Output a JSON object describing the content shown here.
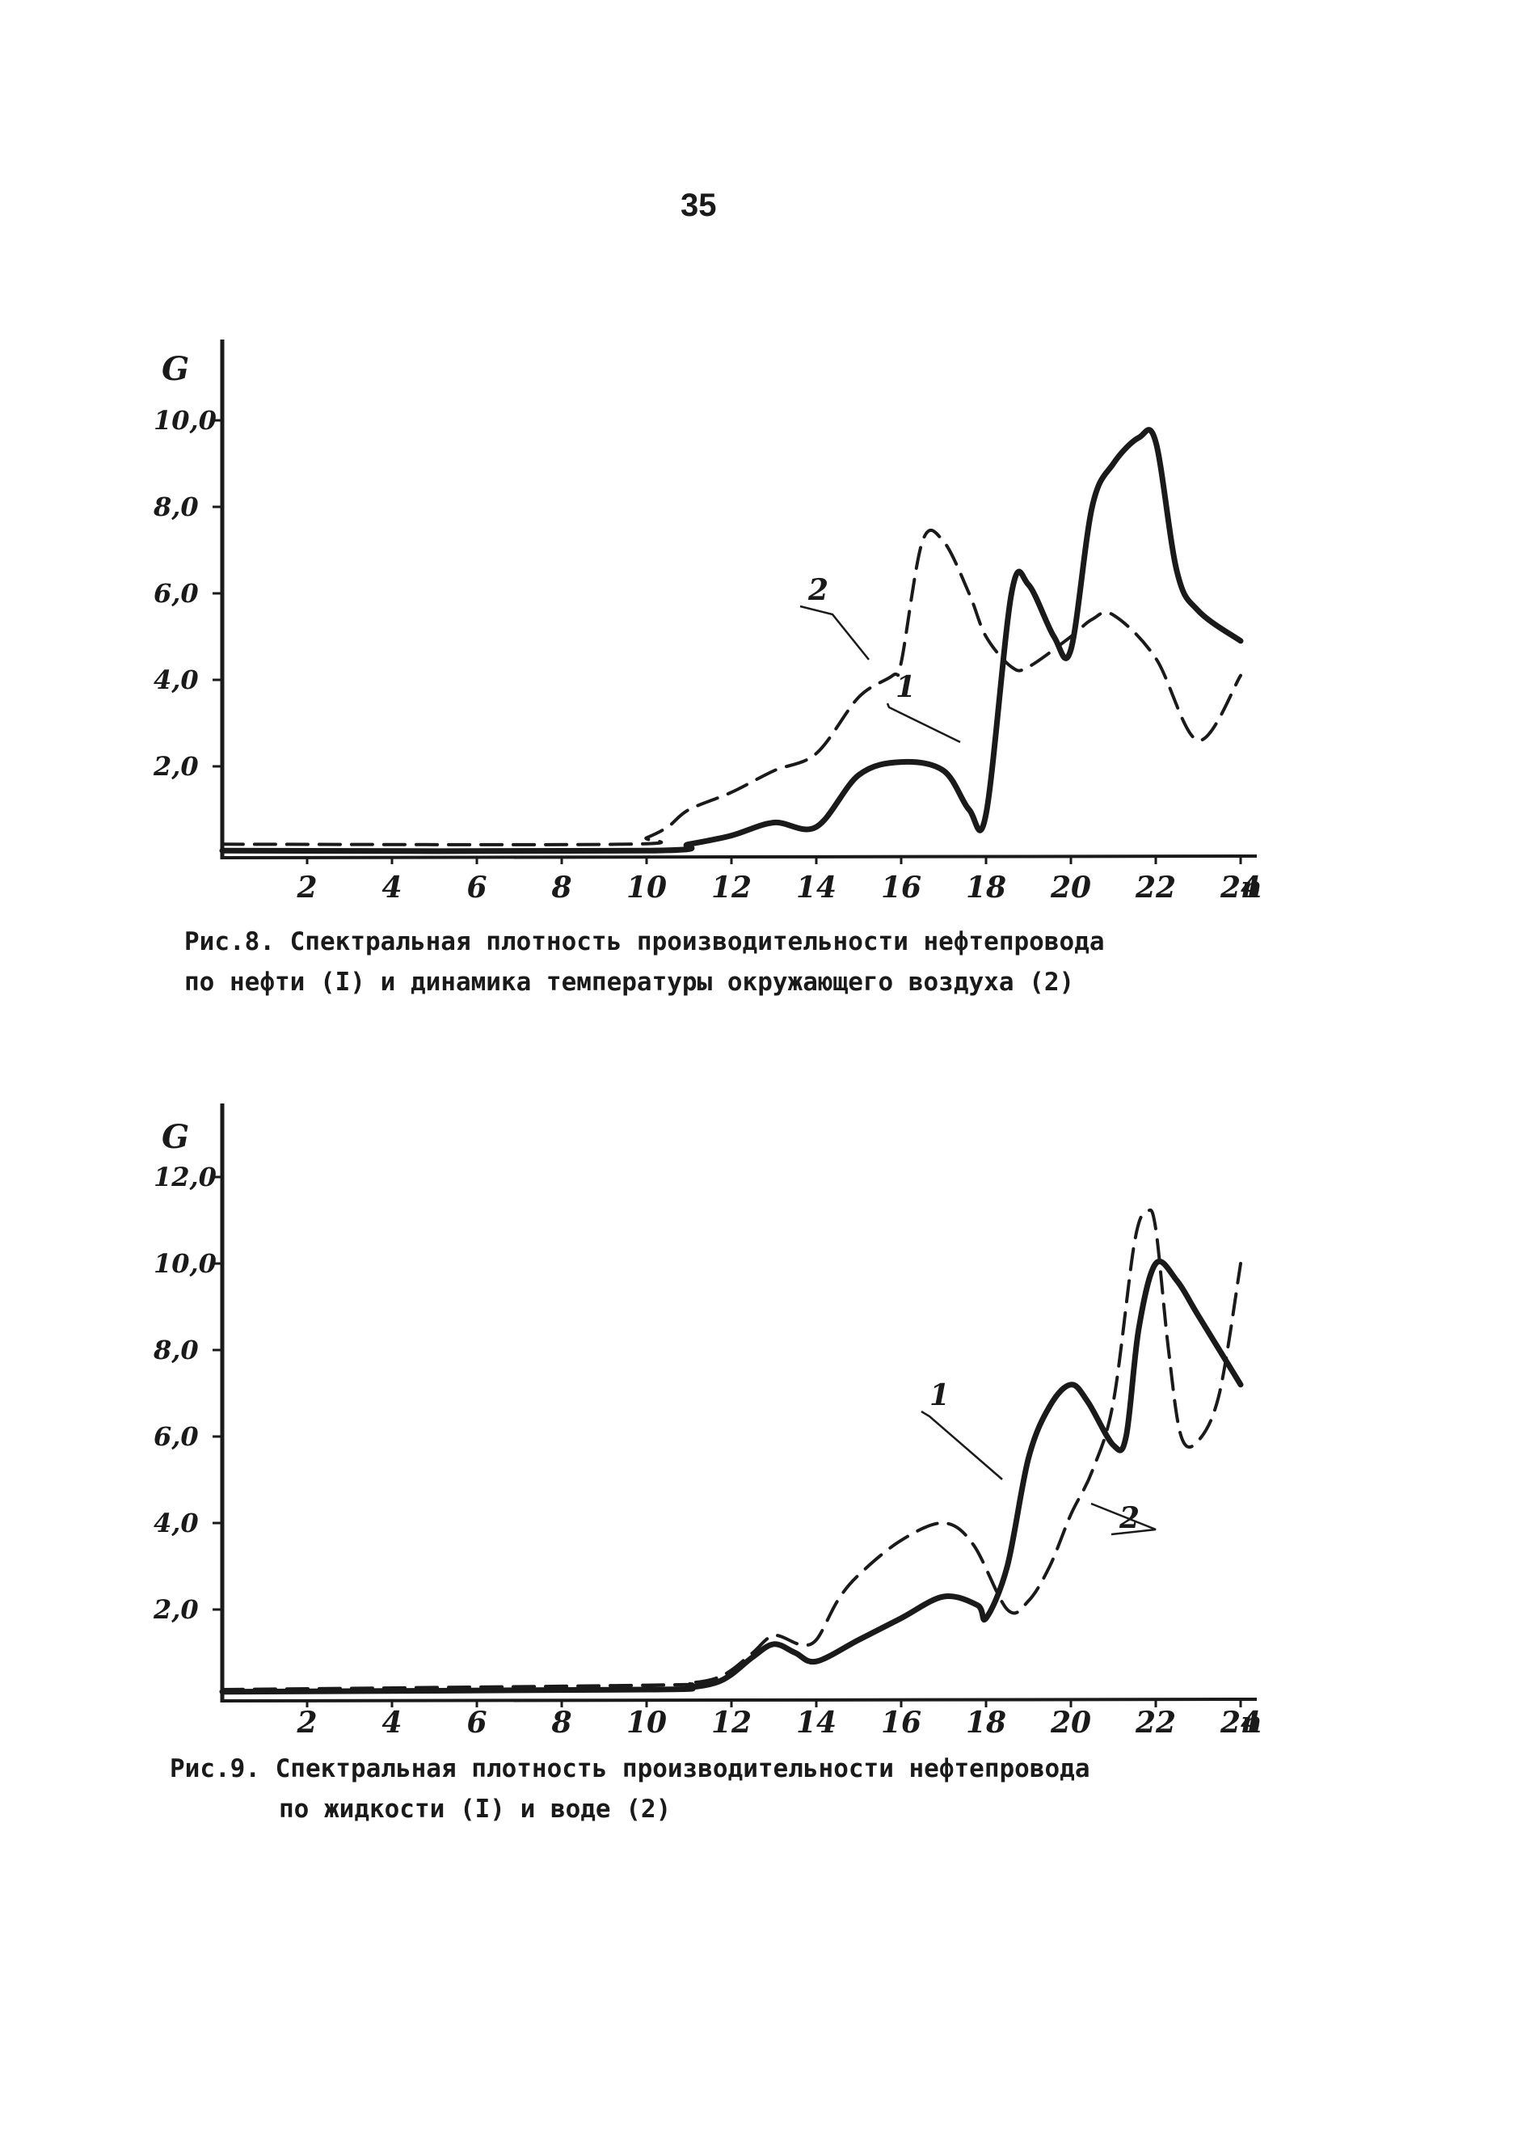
{
  "page_number": "35",
  "colors": {
    "ink": "#1a1a1a",
    "paper": "#ffffff"
  },
  "chart_data": [
    {
      "type": "line",
      "ylabel": "G",
      "xlabel": "n",
      "x_ticks": [
        "2",
        "4",
        "6",
        "8",
        "10",
        "12",
        "14",
        "16",
        "18",
        "20",
        "22",
        "24"
      ],
      "y_ticks": [
        "2,0",
        "4,0",
        "6,0",
        "8,0",
        "10,0"
      ],
      "xlim": [
        0,
        24.5
      ],
      "ylim": [
        0,
        10.5
      ],
      "grid": false,
      "series": [
        {
          "name": "1",
          "style": "solid",
          "x": [
            0,
            10,
            11,
            12,
            13,
            14,
            15,
            16,
            17,
            17.6,
            18,
            18.6,
            19,
            19.6,
            20,
            20.5,
            21,
            21.6,
            22,
            22.5,
            23,
            24
          ],
          "y": [
            0.05,
            0.05,
            0.2,
            0.4,
            0.7,
            0.6,
            1.8,
            2.1,
            1.9,
            1.0,
            0.9,
            6.0,
            6.2,
            5.0,
            4.7,
            8.0,
            9.0,
            9.6,
            9.5,
            6.5,
            5.6,
            4.9
          ]
        },
        {
          "name": "2",
          "style": "dashed",
          "x": [
            0,
            9.5,
            10,
            10.5,
            11,
            12,
            13,
            14,
            15,
            15.8,
            16,
            16.5,
            17,
            17.6,
            18,
            18.6,
            19,
            20,
            20.5,
            21,
            22,
            23,
            24
          ],
          "y": [
            0.2,
            0.2,
            0.35,
            0.6,
            1.0,
            1.4,
            1.9,
            2.3,
            3.6,
            4.1,
            4.4,
            7.2,
            7.2,
            6.0,
            5.0,
            4.3,
            4.3,
            5.0,
            5.4,
            5.5,
            4.5,
            2.6,
            4.1
          ]
        }
      ],
      "series_labels": [
        "2",
        "1"
      ],
      "caption": [
        "Рис.8. Спектральная плотность производительности нефтепровода",
        "по нефти (I) и динамика температуры окружающего воздуха (2)"
      ]
    },
    {
      "type": "line",
      "ylabel": "G",
      "xlabel": "n",
      "x_ticks": [
        "2",
        "4",
        "6",
        "8",
        "10",
        "12",
        "14",
        "16",
        "18",
        "20",
        "22",
        "24"
      ],
      "y_ticks": [
        "2,0",
        "4,0",
        "6,0",
        "8,0",
        "10,0",
        "12,0"
      ],
      "xlim": [
        0,
        24.5
      ],
      "ylim": [
        0,
        12.5
      ],
      "grid": false,
      "series": [
        {
          "name": "1",
          "style": "solid",
          "x": [
            0,
            10,
            11,
            11.6,
            12,
            12.5,
            13,
            13.5,
            14,
            15,
            16,
            17,
            17.8,
            18,
            18.5,
            19,
            19.5,
            20,
            20.4,
            21,
            21.3,
            21.6,
            22,
            22.5,
            23,
            24
          ],
          "y": [
            0.1,
            0.15,
            0.2,
            0.3,
            0.5,
            0.9,
            1.2,
            1.0,
            0.8,
            1.3,
            1.8,
            2.3,
            2.1,
            1.8,
            3.0,
            5.5,
            6.7,
            7.2,
            6.8,
            5.8,
            6.0,
            8.5,
            10.0,
            9.6,
            8.8,
            7.2
          ]
        },
        {
          "name": "2",
          "style": "dashed",
          "x": [
            0,
            10,
            11,
            11.6,
            12,
            12.5,
            13,
            13.6,
            14,
            14.5,
            15,
            16,
            17,
            17.7,
            18.5,
            19,
            19.5,
            20,
            20.5,
            21,
            21.5,
            21.8,
            22,
            22.3,
            22.6,
            23,
            23.5,
            24
          ],
          "y": [
            0.15,
            0.25,
            0.3,
            0.4,
            0.6,
            1.0,
            1.4,
            1.2,
            1.3,
            2.2,
            2.8,
            3.6,
            4.0,
            3.5,
            2.0,
            2.2,
            3.0,
            4.2,
            5.2,
            6.8,
            10.5,
            11.2,
            10.8,
            8.0,
            6.0,
            5.9,
            7.0,
            10.0
          ]
        }
      ],
      "series_labels": [
        "1",
        "2"
      ],
      "caption": [
        "Рис.9. Спектральная плотность производительности нефтепровода",
        "по жидкости (I) и воде (2)"
      ]
    }
  ]
}
